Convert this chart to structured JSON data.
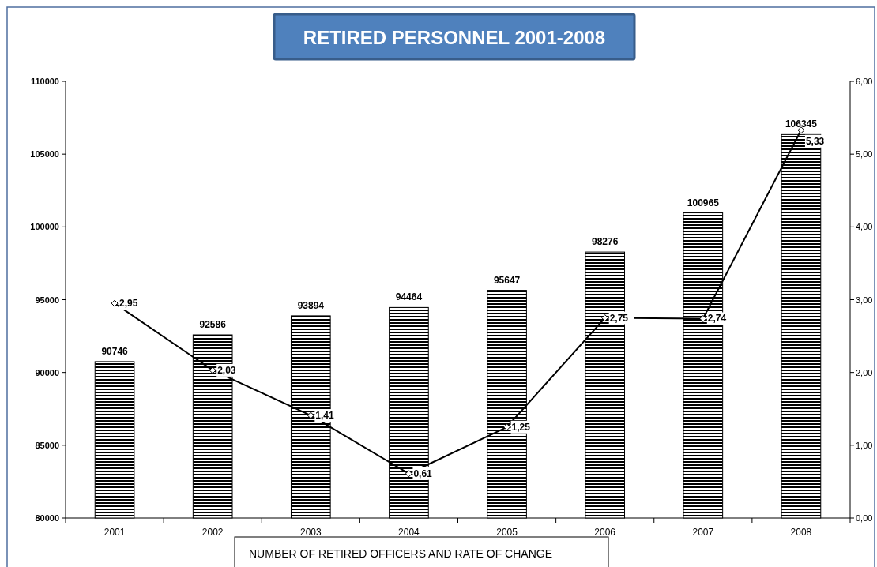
{
  "chart_data": {
    "type": "bar",
    "title": "RETIRED PERSONNEL 2001-2008",
    "categories": [
      "2001",
      "2002",
      "2003",
      "2004",
      "2005",
      "2006",
      "2007",
      "2008"
    ],
    "series": [
      {
        "color": "#000000",
        "values": [
          90746,
          92586,
          93894,
          94464,
          95647,
          98276,
          100965,
          106345
        ],
        "value_labels": [
          "90746",
          "92586",
          "93894",
          "94464",
          "95647",
          "98276",
          "100965",
          "106345"
        ]
      },
      {
        "type": "line",
        "axis": "y2",
        "color": "#000000",
        "marker": "diamond",
        "values": [
          2.95,
          2.03,
          1.41,
          0.61,
          1.25,
          2.75,
          2.74,
          5.33
        ],
        "value_labels": [
          "2,95",
          "2,03",
          "1,41",
          "0,61",
          "1,25",
          "2,75",
          "2,74",
          "5,33"
        ]
      }
    ],
    "ylim": [
      80000,
      110000
    ],
    "yticks": [
      80000,
      85000,
      90000,
      95000,
      100000,
      105000,
      110000
    ],
    "y2lim": [
      0,
      6
    ],
    "y2ticks": [
      {
        "value": 0,
        "label": "0,00"
      },
      {
        "value": 1,
        "label": "1,00"
      },
      {
        "value": 2,
        "label": "2,00"
      },
      {
        "value": 3,
        "label": "3,00"
      },
      {
        "value": 4,
        "label": "4,00"
      },
      {
        "value": 5,
        "label": "5,00"
      },
      {
        "value": 6,
        "label": "6,00"
      }
    ],
    "annotations": [
      "NUMBER OF RETIRED OFFICERS AND RATE OF CHANGE"
    ]
  }
}
